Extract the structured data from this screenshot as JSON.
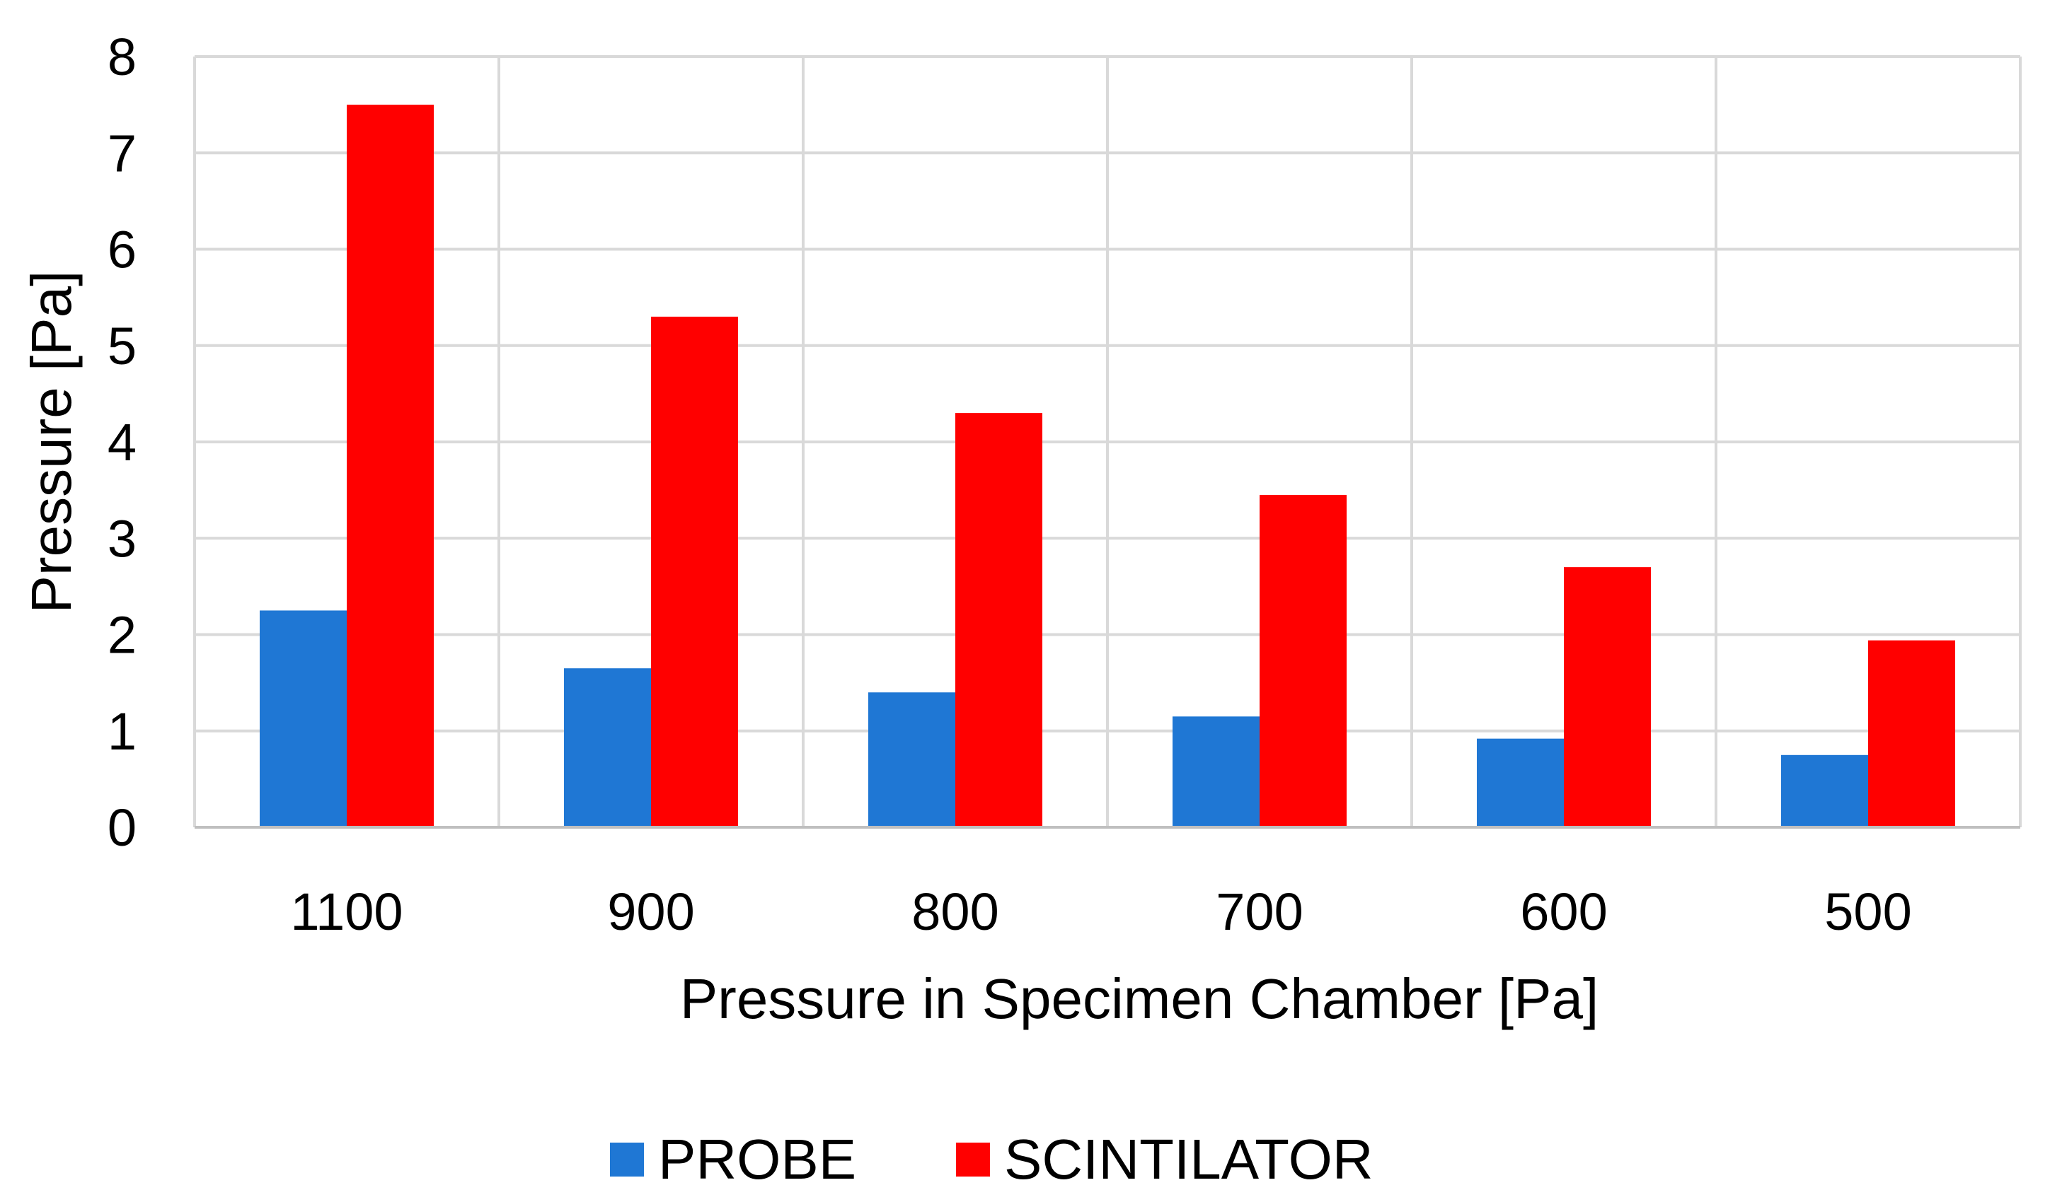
{
  "chart_data": {
    "type": "bar",
    "title": "",
    "xlabel": "Pressure in Specimen Chamber [Pa]",
    "ylabel": "Pressure [Pa]",
    "ylim": [
      0,
      8
    ],
    "yticks": [
      "0",
      "1",
      "2",
      "3",
      "4",
      "5",
      "6",
      "7",
      "8"
    ],
    "categories": [
      "1100",
      "900",
      "800",
      "700",
      "600",
      "500"
    ],
    "series": [
      {
        "name": "PROBE",
        "color": "#1F77D4",
        "values": [
          2.25,
          1.65,
          1.4,
          1.15,
          0.92,
          0.75
        ]
      },
      {
        "name": "SCINTILATOR",
        "color": "#FF0000",
        "values": [
          7.5,
          5.3,
          4.3,
          3.45,
          2.7,
          1.94
        ]
      }
    ],
    "grid": true,
    "legend": "bottom-center"
  }
}
